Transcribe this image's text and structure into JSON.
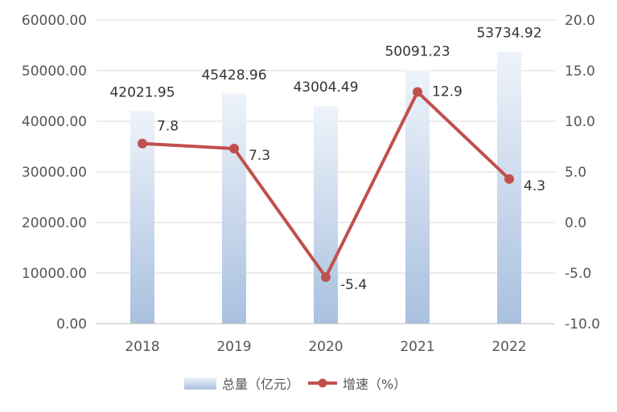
{
  "chart_data": {
    "type": "bar+line",
    "categories": [
      "2018",
      "2019",
      "2020",
      "2021",
      "2022"
    ],
    "series": [
      {
        "name": "总量（亿元）",
        "type": "bar",
        "axis": "left",
        "values": [
          42021.95,
          45428.96,
          43004.49,
          50091.23,
          53734.92
        ],
        "labels": [
          "42021.95",
          "45428.96",
          "43004.49",
          "50091.23",
          "53734.92"
        ]
      },
      {
        "name": "增速（%）",
        "type": "line",
        "axis": "right",
        "values": [
          7.8,
          7.3,
          -5.4,
          12.9,
          4.3
        ],
        "labels": [
          "7.8",
          "7.3",
          "-5.4",
          "12.9",
          "4.3"
        ]
      }
    ],
    "y_left": {
      "min": 0,
      "max": 60000,
      "ticks": [
        "0.00",
        "10000.00",
        "20000.00",
        "30000.00",
        "40000.00",
        "50000.00",
        "60000.00"
      ]
    },
    "y_right": {
      "min": -10,
      "max": 20,
      "ticks": [
        "-10.0",
        "-5.0",
        "0.0",
        "5.0",
        "10.0",
        "15.0",
        "20.0"
      ]
    },
    "grid": true,
    "legend": "bottom",
    "colors": {
      "bar_top": "#eef3fa",
      "bar_bottom": "#a9c0df",
      "line": "#c0504d",
      "grid": "#d9d9d9",
      "text": "#555555"
    }
  }
}
